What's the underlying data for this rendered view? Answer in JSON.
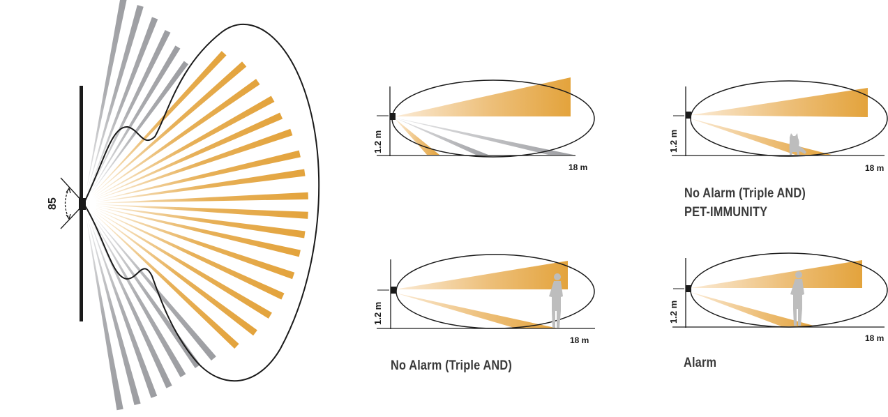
{
  "colors": {
    "orange": "#E3A33C",
    "gray": "#9C9DA1",
    "line": "#1A1A1A",
    "person": "#BDBDBD"
  },
  "top_view": {
    "angle_label": "85"
  },
  "panels": [
    {
      "id": "top-left",
      "height_label": "1.2 m",
      "distance_label": "18 m",
      "caption": ""
    },
    {
      "id": "top-right",
      "height_label": "1.2 m",
      "distance_label": "18 m",
      "caption_line1": "No Alarm (Triple AND)",
      "caption_line2": "PET-IMMUNITY"
    },
    {
      "id": "bottom-left",
      "height_label": "1.2 m",
      "distance_label": "18 m",
      "caption": "No Alarm (Triple AND)"
    },
    {
      "id": "bottom-right",
      "height_label": "1.2 m",
      "distance_label": "18 m",
      "caption": "Alarm"
    }
  ]
}
